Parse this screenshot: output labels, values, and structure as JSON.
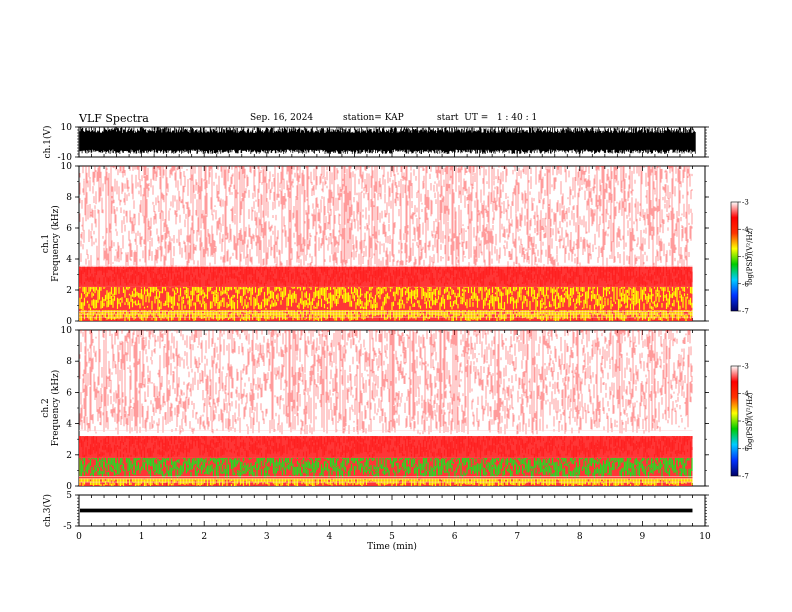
{
  "header": {
    "title": "VLF Spectra",
    "date": "Sep. 16, 2024",
    "station": "station= KAP",
    "start": "start  UT =   1 : 40 : 1"
  },
  "colors": {
    "spectrogram_low": "#ffffff",
    "spectrogram_mid": "#ff2020",
    "spectrogram_high": "#ffff00",
    "spectrogram_peak": "#22dd22",
    "colorbar": [
      "#000066",
      "#0033ff",
      "#00ccff",
      "#00cc00",
      "#ffff00",
      "#ff3300",
      "#ff0000",
      "#ffffff"
    ]
  },
  "chart_data": [
    {
      "type": "line",
      "title": "",
      "ylabel": "ch.1(V)",
      "ylim": [
        -10,
        10
      ],
      "yticks": [
        "10",
        "-10"
      ],
      "xlim": [
        0,
        10
      ],
      "description_of_signal": "dense noise filling roughly the full range"
    },
    {
      "type": "heatmap",
      "ylabel": "ch.1 Frequency  (kHz)",
      "ylim": [
        0,
        10
      ],
      "yticks": [
        "0",
        "2",
        "4",
        "6",
        "8",
        "10"
      ],
      "xlim": [
        0,
        10
      ],
      "data_end_min": 9.8,
      "colorbar": {
        "label": "log(PSD)(V²/Hz)",
        "range": [
          -7,
          -3
        ],
        "ticks": [
          "-3",
          "-4",
          "-5",
          "-6",
          "-7"
        ]
      },
      "bands_khz": [
        {
          "from": 0,
          "to": 0.7,
          "level": "high"
        },
        {
          "from": 0.7,
          "to": 2.2,
          "level": "high"
        },
        {
          "from": 2.2,
          "to": 3.5,
          "level": "mid"
        },
        {
          "from": 3.5,
          "to": 10,
          "level": "low"
        }
      ]
    },
    {
      "type": "heatmap",
      "ylabel": "ch.2 Frequency  (kHz)",
      "ylim": [
        0,
        10
      ],
      "yticks": [
        "0",
        "2",
        "4",
        "6",
        "8",
        "10"
      ],
      "xlim": [
        0,
        10
      ],
      "data_end_min": 9.8,
      "colorbar": {
        "label": "log(PSD)(V²/Hz)",
        "range": [
          -7,
          -3
        ],
        "ticks": [
          "-3",
          "-4",
          "-5",
          "-6",
          "-7"
        ]
      },
      "bands_khz": [
        {
          "from": 0,
          "to": 0.5,
          "level": "high"
        },
        {
          "from": 0.5,
          "to": 1.8,
          "level": "peak"
        },
        {
          "from": 1.8,
          "to": 3.2,
          "level": "mid"
        },
        {
          "from": 3.2,
          "to": 10,
          "level": "low"
        }
      ]
    },
    {
      "type": "line",
      "ylabel": "ch.3(V)",
      "ylim": [
        -5,
        5
      ],
      "yticks": [
        "5",
        "-5"
      ],
      "xlim": [
        0,
        10
      ],
      "xlabel": "Time  (min)",
      "xticks": [
        "0",
        "1",
        "2",
        "3",
        "4",
        "5",
        "6",
        "7",
        "8",
        "9",
        "10"
      ],
      "description_of_signal": "narrow band near 0 V"
    }
  ]
}
